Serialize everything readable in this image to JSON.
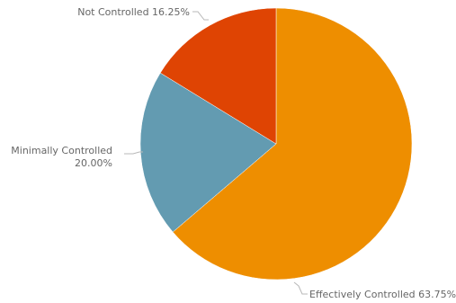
{
  "chart_data": {
    "type": "pie",
    "title": "",
    "slices": [
      {
        "label": "Effectively Controlled",
        "value": 63.75,
        "display_label": "Effectively Controlled 63.75%",
        "color": "#ee8e00"
      },
      {
        "label": "Minimally Controlled",
        "value": 20.0,
        "display_label_lines": [
          "Minimally Controlled",
          "20.00%"
        ],
        "color": "#639bb1"
      },
      {
        "label": "Not Controlled",
        "value": 16.25,
        "display_label": "Not Controlled 16.25%",
        "color": "#df4403"
      }
    ]
  }
}
